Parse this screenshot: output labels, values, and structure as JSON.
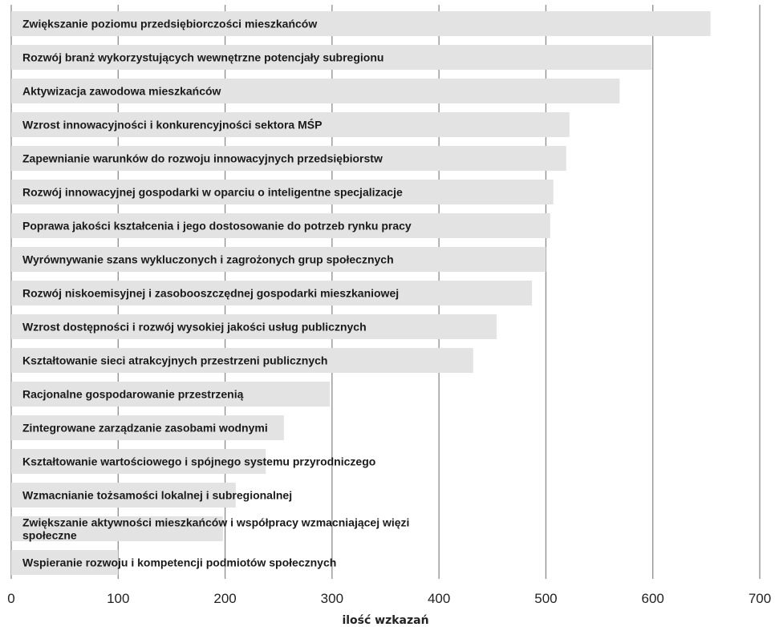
{
  "chart_data": {
    "type": "bar",
    "orientation": "horizontal",
    "xlabel": "ilość wzkazań",
    "ylabel": "",
    "xlim": [
      0,
      700
    ],
    "xticks": [
      0,
      100,
      200,
      300,
      400,
      500,
      600,
      700
    ],
    "grid": true,
    "legend": "none",
    "bar_color": "#e3e3e3",
    "grid_color": "#8c8c8c",
    "categories": [
      "Zwiększanie poziomu przedsiębiorczości mieszkańców",
      "Rozwój branż wykorzystujących wewnętrzne potencjały subregionu",
      "Aktywizacja zawodowa mieszkańców",
      "Wzrost innowacyjności i konkurencyjności sektora MŚP",
      "Zapewnianie warunków do rozwoju innowacyjnych przedsiębiorstw",
      "Rozwój innowacyjnej gospodarki w oparciu o inteligentne specjalizacje",
      "Poprawa jakości kształcenia i jego dostosowanie do potrzeb rynku pracy",
      "Wyrównywanie szans wykluczonych i zagrożonych grup społecznych",
      "Rozwój niskoemisyjnej i zasobooszczędnej gospodarki mieszkaniowej",
      "Wzrost dostępności i rozwój wysokiej jakości usług publicznych",
      "Kształtowanie sieci atrakcyjnych przestrzeni publicznych",
      "Racjonalne gospodarowanie przestrzenią",
      "Zintegrowane zarządzanie zasobami wodnymi",
      "Kształtowanie wartościowego i spójnego systemu przyrodniczego",
      "Wzmacnianie tożsamości lokalnej i subregionalnej",
      "Zwiększanie aktywności mieszkańców i współpracy wzmacniającej więzi społeczne",
      "Wspieranie rozwoju i kompetencji podmiotów społecznych"
    ],
    "values": [
      654,
      599,
      569,
      522,
      519,
      507,
      504,
      500,
      487,
      454,
      432,
      298,
      255,
      238,
      210,
      198,
      100
    ]
  }
}
